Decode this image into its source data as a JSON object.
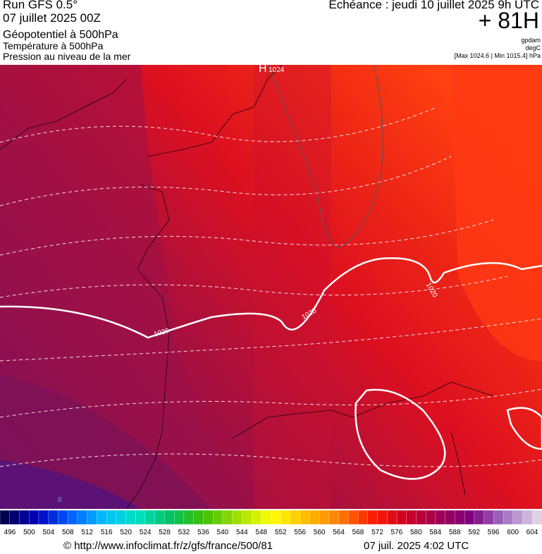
{
  "header": {
    "run": "Run GFS 0.5°",
    "date": "07 juillet 2025 00Z",
    "layer1": "Géopotentiel à 500hPa",
    "layer2": "Température à 500hPa",
    "layer3": "Pression au niveau de la mer",
    "echeance": "Echéance : jeudi 10 juillet 2025 9h UTC",
    "hour": "+ 81H",
    "unit1": "gpdam",
    "unit2": "degC",
    "range": "[Max 1024.6 | Min 1015.4] hPa"
  },
  "map": {
    "high_symbol": "H",
    "high_value": "1024",
    "isobar_labels": [
      "1020",
      "1020",
      "1020"
    ],
    "temp_label": "8"
  },
  "colorbar": {
    "labels": [
      "496",
      "500",
      "504",
      "508",
      "512",
      "516",
      "520",
      "524",
      "528",
      "532",
      "536",
      "540",
      "544",
      "548",
      "552",
      "556",
      "560",
      "564",
      "568",
      "572",
      "576",
      "580",
      "584",
      "588",
      "592",
      "596",
      "600",
      "604"
    ]
  },
  "footer": {
    "url": "© http://www.infoclimat.fr/z/gfs/france/500/81",
    "timestamp": "07 juil. 2025  4:02 UTC"
  }
}
